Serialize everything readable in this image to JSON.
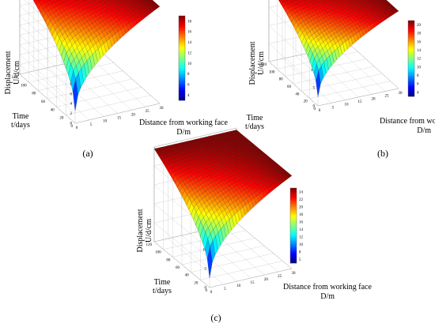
{
  "colors": {
    "colormap": [
      "#00007f",
      "#0000ff",
      "#0080ff",
      "#00ffff",
      "#80ff80",
      "#ffff00",
      "#ff8000",
      "#ff0000",
      "#7f0000"
    ],
    "mesh_stroke": "#000000"
  },
  "chart_data": [
    {
      "type": "surface3d",
      "panel_label": "(a)",
      "zlabel": [
        "Displacement",
        "U/d/cm"
      ],
      "ylabel": [
        "Time",
        "t/days"
      ],
      "xlabel": [
        "Distance from working face",
        "D/m"
      ],
      "x_ticks": [
        "0",
        "5",
        "10",
        "15",
        "20",
        "25",
        "30"
      ],
      "y_ticks": [
        "0",
        "20",
        "40",
        "60",
        "80",
        "100",
        "120"
      ],
      "z_ticks": [
        "0",
        "2",
        "4",
        "6",
        "8",
        "10",
        "12",
        "14",
        "16",
        "18",
        "20"
      ],
      "colorbar_ticks": [
        "4",
        "6",
        "8",
        "10",
        "12",
        "14",
        "16",
        "18"
      ],
      "xlim": [
        0,
        30
      ],
      "ylim": [
        0,
        120
      ],
      "zlim": [
        0,
        20
      ],
      "clim": [
        2.5,
        19.8
      ],
      "z_max": 19.8
    },
    {
      "type": "surface3d",
      "panel_label": "(b)",
      "zlabel": [
        "Displacement",
        "U/d/cm"
      ],
      "ylabel": [
        "Time",
        "t/days"
      ],
      "xlabel": [
        "Distance from working face",
        "D/m"
      ],
      "x_ticks": [
        "0",
        "5",
        "10",
        "15",
        "20",
        "25",
        "30"
      ],
      "y_ticks": [
        "0",
        "20",
        "40",
        "60",
        "80",
        "100",
        "120"
      ],
      "z_ticks": [
        "0",
        "5",
        "10",
        "15",
        "20",
        "25"
      ],
      "colorbar_ticks": [
        "4",
        "6",
        "8",
        "10",
        "12",
        "14",
        "16",
        "18",
        "20"
      ],
      "xlim": [
        0,
        30
      ],
      "ylim": [
        0,
        120
      ],
      "zlim": [
        0,
        25
      ],
      "clim": [
        2.5,
        21.5
      ],
      "z_max": 21.5
    },
    {
      "type": "surface3d",
      "panel_label": "(c)",
      "zlabel": [
        "Displacement",
        "U/d/cm"
      ],
      "ylabel": [
        "Time",
        "t/days"
      ],
      "xlabel": [
        "Distance from working face",
        "D/m"
      ],
      "x_ticks": [
        "0",
        "5",
        "10",
        "15",
        "20",
        "25",
        "30"
      ],
      "y_ticks": [
        "0",
        "20",
        "40",
        "60",
        "80",
        "100",
        "120"
      ],
      "z_ticks": [
        "0",
        "5",
        "10",
        "15",
        "20",
        "25"
      ],
      "colorbar_ticks": [
        "5",
        "8",
        "10",
        "12",
        "14",
        "16",
        "18",
        "20",
        "22",
        "24"
      ],
      "xlim": [
        0,
        30
      ],
      "ylim": [
        0,
        120
      ],
      "zlim": [
        0,
        25
      ],
      "clim": [
        2.5,
        24.5
      ],
      "z_max": 24.5
    }
  ]
}
